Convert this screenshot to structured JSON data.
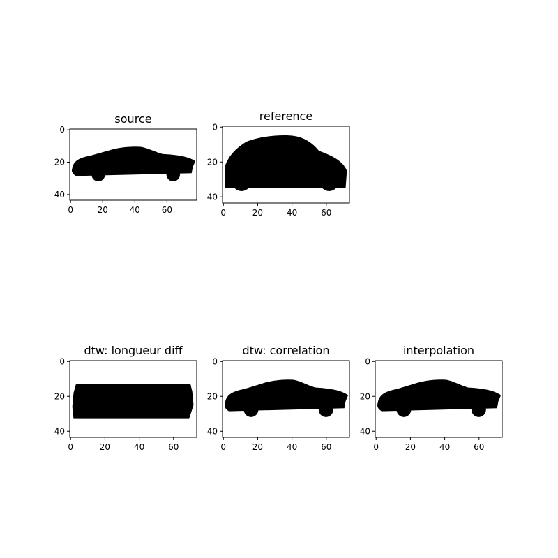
{
  "chart_data": [
    {
      "type": "image",
      "title": "source",
      "width": 79,
      "height": 44,
      "xticks": [
        0,
        20,
        40,
        60
      ],
      "yticks": [
        0,
        20,
        40
      ],
      "silhouette": "sports_car"
    },
    {
      "type": "image",
      "title": "reference",
      "width": 74,
      "height": 44,
      "xticks": [
        0,
        20,
        40,
        60
      ],
      "yticks": [
        0,
        20,
        40
      ],
      "silhouette": "hatchback"
    },
    {
      "type": "image",
      "title": "dtw: longueur diff",
      "width": 74,
      "height": 44,
      "xticks": [
        0,
        20,
        40,
        60
      ],
      "yticks": [
        0,
        20,
        40
      ],
      "silhouette": "block"
    },
    {
      "type": "image",
      "title": "dtw: correlation",
      "width": 74,
      "height": 44,
      "xticks": [
        0,
        20,
        40,
        60
      ],
      "yticks": [
        0,
        20,
        40
      ],
      "silhouette": "sports_car"
    },
    {
      "type": "image",
      "title": "interpolation",
      "width": 74,
      "height": 44,
      "xticks": [
        0,
        20,
        40,
        60
      ],
      "yticks": [
        0,
        20,
        40
      ],
      "silhouette": "sports_car"
    }
  ]
}
